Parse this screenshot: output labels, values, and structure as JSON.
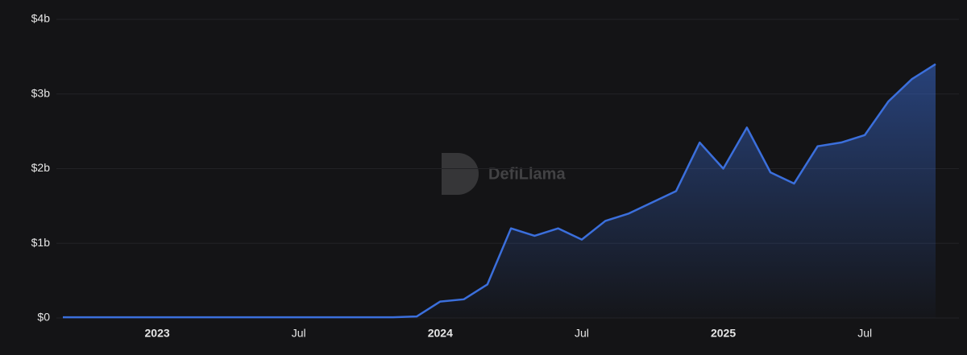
{
  "chart_data": {
    "type": "area",
    "watermark": "DefiLlama",
    "x": [
      "2022-09",
      "2022-10",
      "2022-11",
      "2022-12",
      "2023-01",
      "2023-02",
      "2023-03",
      "2023-04",
      "2023-05",
      "2023-06",
      "2023-07",
      "2023-08",
      "2023-09",
      "2023-10",
      "2023-11",
      "2023-12",
      "2024-01",
      "2024-02",
      "2024-03",
      "2024-04",
      "2024-05",
      "2024-06",
      "2024-07",
      "2024-08",
      "2024-09",
      "2024-10",
      "2024-11",
      "2024-12",
      "2025-01",
      "2025-02",
      "2025-03",
      "2025-04",
      "2025-05",
      "2025-06",
      "2025-07",
      "2025-08",
      "2025-09",
      "2025-10"
    ],
    "values": [
      0.01,
      0.01,
      0.01,
      0.01,
      0.01,
      0.01,
      0.01,
      0.01,
      0.01,
      0.01,
      0.01,
      0.01,
      0.01,
      0.01,
      0.01,
      0.02,
      0.22,
      0.25,
      0.45,
      1.2,
      1.1,
      1.2,
      1.05,
      1.3,
      1.4,
      1.55,
      1.7,
      2.35,
      2.0,
      2.55,
      1.95,
      1.8,
      2.3,
      2.35,
      2.45,
      2.9,
      3.2,
      3.4
    ],
    "color": "#3b6fdc",
    "xlim": [
      "2022-09",
      "2025-10"
    ],
    "xticks": [
      {
        "value": "2023-01",
        "label": "2023"
      },
      {
        "value": "2023-07",
        "label": "Jul"
      },
      {
        "value": "2024-01",
        "label": "2024"
      },
      {
        "value": "2024-07",
        "label": "Jul"
      },
      {
        "value": "2025-01",
        "label": "2025"
      },
      {
        "value": "2025-07",
        "label": "Jul"
      }
    ],
    "ylim": [
      0,
      4
    ],
    "yticks": [
      {
        "value": 0,
        "label": "$0"
      },
      {
        "value": 1,
        "label": "$1b"
      },
      {
        "value": 2,
        "label": "$2b"
      },
      {
        "value": 3,
        "label": "$3b"
      },
      {
        "value": 4,
        "label": "$4b"
      }
    ],
    "grid": true
  }
}
